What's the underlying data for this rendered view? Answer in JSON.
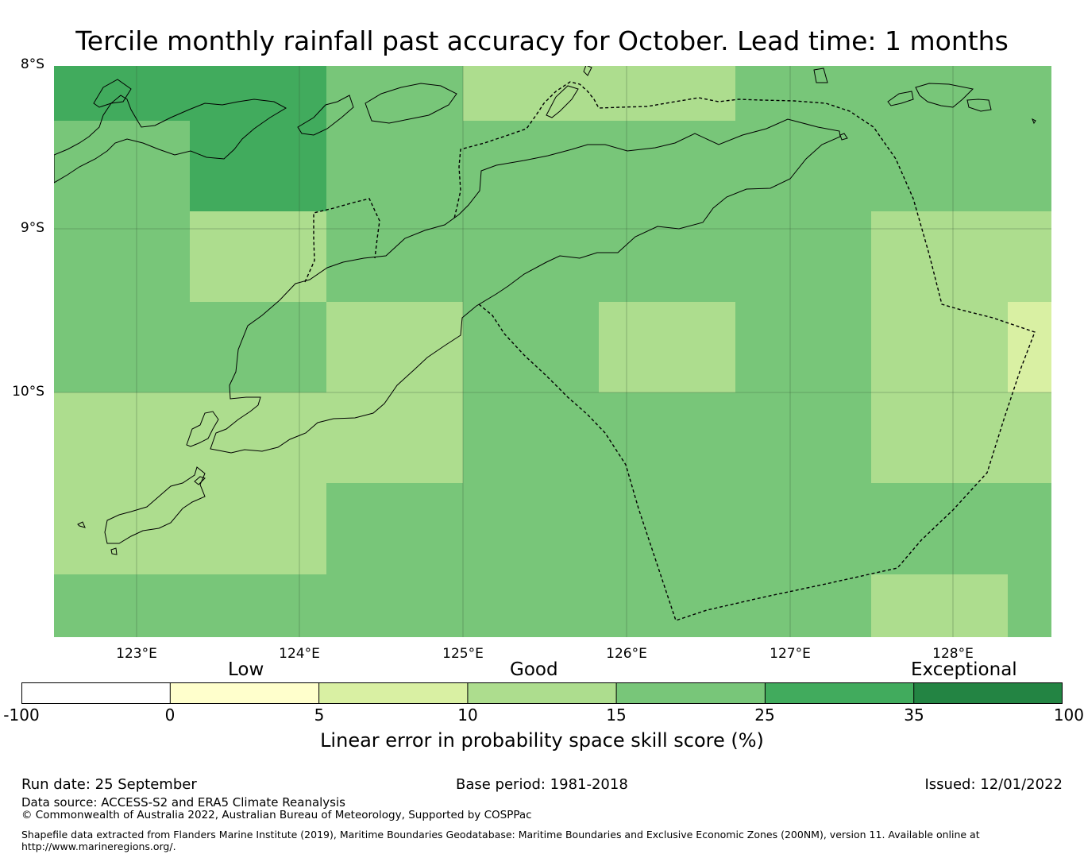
{
  "title": "Tercile monthly rainfall past accuracy for October. Lead time: 1 months",
  "map": {
    "lat_labels": [
      "8°S",
      "9°S",
      "10°S"
    ],
    "lon_labels": [
      "123°E",
      "124°E",
      "125°E",
      "126°E",
      "127°E",
      "128°E"
    ],
    "lon_range": [
      122.5,
      128.6
    ],
    "lat_range": [
      -11.5,
      -8.0
    ]
  },
  "legend": {
    "category_labels": [
      "Low",
      "Good",
      "Exceptional"
    ],
    "ticks": [
      "-100",
      "0",
      "5",
      "10",
      "15",
      "25",
      "35",
      "100"
    ],
    "colors": [
      "#ffffff",
      "#ffffcc",
      "#d9f0a3",
      "#addd8e",
      "#78c679",
      "#41ab5d",
      "#238443"
    ],
    "label": "Linear error in probability space skill score (%)"
  },
  "footer": {
    "run_date": "Run date: 25 September",
    "base_period": "Base period: 1981-2018",
    "issued": "Issued: 12/01/2022",
    "data_source": "Data source: ACCESS-S2 and ERA5 Climate Reanalysis",
    "copyright": "© Commonwealth of Australia 2022, Australian Bureau of Meteorology, Supported by COSPPac",
    "shapefile_line1": "Shapefile data extracted from Flanders Marine Institute (2019), Maritime Boundaries Geodatabase: Maritime Boundaries and Exclusive Economic Zones (200NM), version 11. Available online at",
    "shapefile_line2": "http://www.marineregions.org/."
  }
}
